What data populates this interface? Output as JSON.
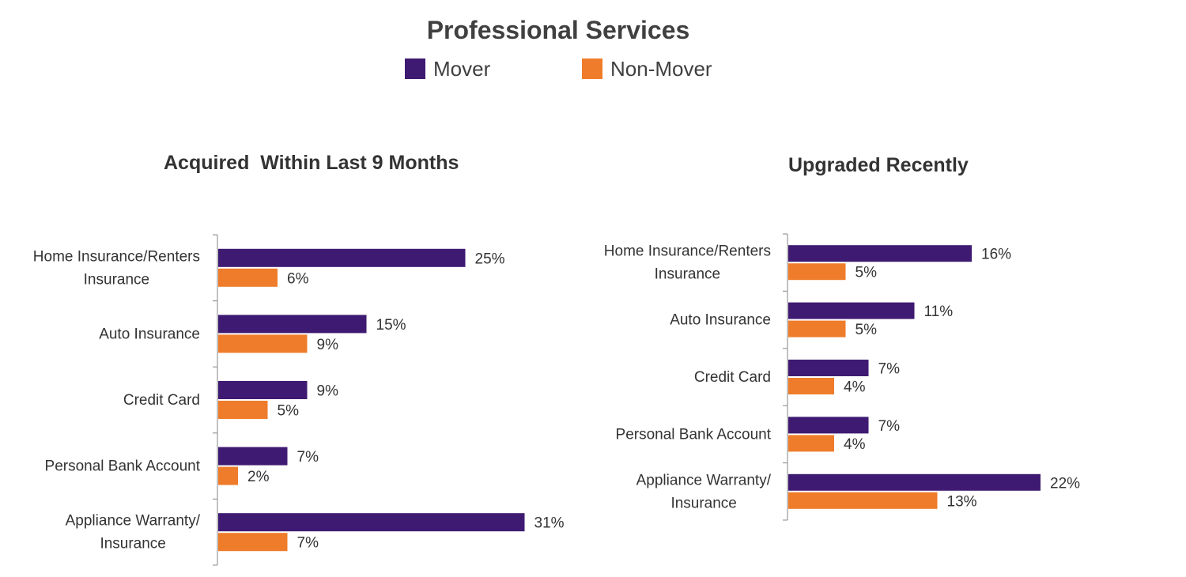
{
  "title": "Professional Services",
  "legend": [
    {
      "label": "Mover",
      "color": "#3f1a72"
    },
    {
      "label": "Non-Mover",
      "color": "#ef7c2a"
    }
  ],
  "chart_data": [
    {
      "type": "bar",
      "orientation": "horizontal",
      "title": "Acquired  Within Last 9 Months",
      "categories": [
        [
          "Home Insurance/Renters",
          "Insurance"
        ],
        [
          "Auto Insurance"
        ],
        [
          "Credit Card"
        ],
        [
          "Personal Bank Account"
        ],
        [
          "Appliance Warranty/",
          "Insurance"
        ]
      ],
      "series": [
        {
          "name": "Mover",
          "values": [
            25,
            15,
            9,
            7,
            31
          ],
          "labels": [
            "25%",
            "15%",
            "9%",
            "7%",
            "31%"
          ]
        },
        {
          "name": "Non-Mover",
          "values": [
            6,
            9,
            5,
            2,
            7
          ],
          "labels": [
            "6%",
            "9%",
            "5%",
            "2%",
            "7%"
          ]
        }
      ],
      "xlim": [
        0,
        35
      ],
      "grid": false
    },
    {
      "type": "bar",
      "orientation": "horizontal",
      "title": "Upgraded Recently",
      "categories": [
        [
          "Home Insurance/Renters",
          "Insurance"
        ],
        [
          "Auto Insurance"
        ],
        [
          "Credit Card"
        ],
        [
          "Personal Bank Account"
        ],
        [
          "Appliance Warranty/",
          "Insurance"
        ]
      ],
      "series": [
        {
          "name": "Mover",
          "values": [
            16,
            11,
            7,
            7,
            22
          ],
          "labels": [
            "16%",
            "11%",
            "7%",
            "7%",
            "22%"
          ]
        },
        {
          "name": "Non-Mover",
          "values": [
            5,
            5,
            4,
            4,
            13
          ],
          "labels": [
            "5%",
            "5%",
            "4%",
            "4%",
            "13%"
          ]
        }
      ],
      "xlim": [
        0,
        25
      ],
      "grid": false
    }
  ]
}
